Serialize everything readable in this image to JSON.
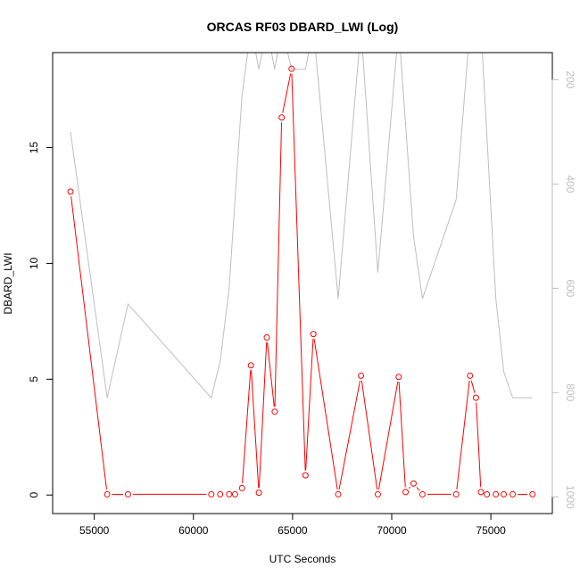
{
  "chart_data": {
    "type": "line",
    "title": "ORCAS RF03 DBARD_LWI (Log)",
    "xlabel": "UTC Seconds",
    "ylabel": "DBARD_LWI",
    "xlim": [
      52900,
      78100
    ],
    "ylim": [
      -0.8,
      19.1
    ],
    "y2lim": [
      1032,
      148
    ],
    "x_ticks": [
      55000,
      60000,
      65000,
      70000,
      75000
    ],
    "x_tick_labels": [
      "55000",
      "60000",
      "65000",
      "70000",
      "75000"
    ],
    "y_ticks": [
      0,
      5,
      10,
      15
    ],
    "y_tick_labels": [
      "0",
      "5",
      "10",
      "15"
    ],
    "y2_ticks": [
      200,
      400,
      600,
      800,
      1000
    ],
    "y2_tick_labels": [
      "200",
      "400",
      "600",
      "800",
      "1000"
    ],
    "grid": false,
    "series": [
      {
        "axis": "left",
        "color": "#ff0000",
        "markers": "open-circle",
        "points": [
          [
            53800,
            13.1
          ],
          [
            55650,
            0.03
          ],
          [
            56700,
            0.03
          ],
          [
            60900,
            0.03
          ],
          [
            61350,
            0.03
          ],
          [
            61800,
            0.03
          ],
          [
            62100,
            0.03
          ],
          [
            62450,
            0.3
          ],
          [
            62900,
            5.6
          ],
          [
            63300,
            0.1
          ],
          [
            63700,
            6.8
          ],
          [
            64100,
            3.6
          ],
          [
            64450,
            16.3
          ],
          [
            64950,
            18.4
          ],
          [
            65650,
            0.85
          ],
          [
            66050,
            6.95
          ],
          [
            67300,
            0.03
          ],
          [
            68450,
            5.15
          ],
          [
            69300,
            0.03
          ],
          [
            70350,
            5.1
          ],
          [
            70700,
            0.13
          ],
          [
            71100,
            0.5
          ],
          [
            71550,
            0.03
          ],
          [
            73250,
            0.03
          ],
          [
            73950,
            5.15
          ],
          [
            74250,
            4.2
          ],
          [
            74500,
            0.13
          ],
          [
            74800,
            0.03
          ],
          [
            75250,
            0.03
          ],
          [
            75650,
            0.03
          ],
          [
            76100,
            0.03
          ],
          [
            77100,
            0.03
          ]
        ]
      },
      {
        "axis": "right",
        "color": "#bebebe",
        "markers": "none",
        "points": [
          [
            53800,
            300
          ],
          [
            55650,
            810
          ],
          [
            56700,
            630
          ],
          [
            60900,
            810
          ],
          [
            61350,
            740
          ],
          [
            61800,
            600
          ],
          [
            62450,
            230
          ],
          [
            62900,
            100
          ],
          [
            63300,
            180
          ],
          [
            63700,
            100
          ],
          [
            64100,
            180
          ],
          [
            64450,
            100
          ],
          [
            64950,
            180
          ],
          [
            65650,
            180
          ],
          [
            66050,
            100
          ],
          [
            67300,
            620
          ],
          [
            68450,
            100
          ],
          [
            69300,
            570
          ],
          [
            70350,
            100
          ],
          [
            71100,
            500
          ],
          [
            71550,
            620
          ],
          [
            73250,
            430
          ],
          [
            73950,
            100
          ],
          [
            74500,
            100
          ],
          [
            75250,
            620
          ],
          [
            75650,
            760
          ],
          [
            76100,
            810
          ],
          [
            77100,
            810
          ]
        ]
      }
    ]
  }
}
